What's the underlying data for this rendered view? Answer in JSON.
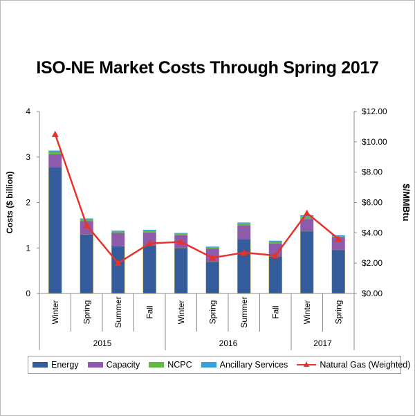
{
  "title": "ISO-NE Market Costs Through Spring 2017",
  "colors": {
    "energy": "#345b9b",
    "capacity": "#8e5aaa",
    "ncpc": "#63b844",
    "ancillary": "#3aa0d8",
    "gas": "#e8312a"
  },
  "chart_data": {
    "type": "bar",
    "stacked": true,
    "ylabel": "Costs ($ billion)",
    "y2label": "$/MMBtu",
    "ylim": [
      0,
      4
    ],
    "y2lim": [
      0,
      12
    ],
    "yticks": [
      "0",
      "1",
      "2",
      "3",
      "4"
    ],
    "y2ticks": [
      "$0.00",
      "$2.00",
      "$4.00",
      "$6.00",
      "$8.00",
      "$10.00",
      "$12.00"
    ],
    "categories": [
      "Winter",
      "Spring",
      "Summer",
      "Fall",
      "Winter",
      "Spring",
      "Summer",
      "Fall",
      "Winter",
      "Spring"
    ],
    "groups": [
      {
        "label": "2015",
        "count": 4
      },
      {
        "label": "2016",
        "count": 4
      },
      {
        "label": "2017",
        "count": 2
      }
    ],
    "series": [
      {
        "name": "Energy",
        "values": [
          2.78,
          1.3,
          1.04,
          1.06,
          1.0,
          0.7,
          1.2,
          0.82,
          1.37,
          0.96
        ]
      },
      {
        "name": "Capacity",
        "values": [
          0.28,
          0.29,
          0.29,
          0.28,
          0.28,
          0.29,
          0.3,
          0.28,
          0.27,
          0.28
        ]
      },
      {
        "name": "NCPC",
        "values": [
          0.05,
          0.04,
          0.03,
          0.03,
          0.03,
          0.02,
          0.04,
          0.04,
          0.05,
          0.02
        ]
      },
      {
        "name": "Ancillary Services",
        "values": [
          0.03,
          0.02,
          0.02,
          0.03,
          0.02,
          0.02,
          0.02,
          0.02,
          0.03,
          0.02
        ]
      }
    ],
    "line_series": {
      "name": "Natural Gas (Weighted)",
      "axis": "right",
      "values": [
        10.5,
        4.5,
        2.0,
        3.3,
        3.4,
        2.35,
        2.7,
        2.5,
        5.3,
        3.6
      ]
    },
    "legend_position": "bottom"
  },
  "legend": {
    "energy": "Energy",
    "capacity": "Capacity",
    "ncpc": "NCPC",
    "ancillary": "Ancillary Services",
    "gas": "Natural Gas (Weighted)"
  }
}
